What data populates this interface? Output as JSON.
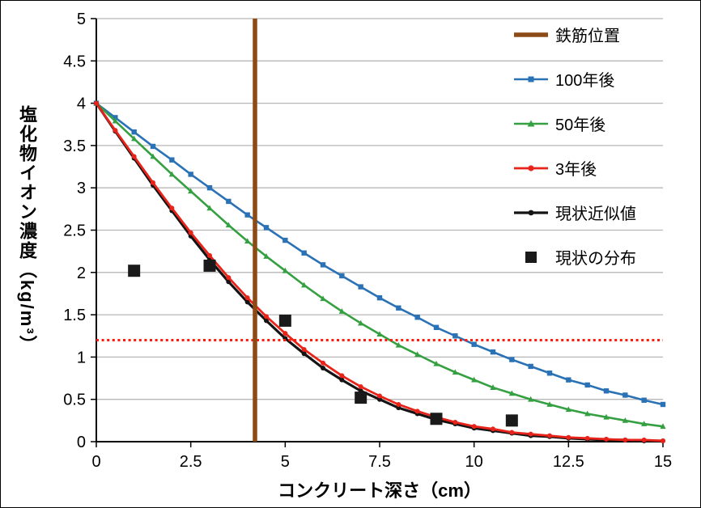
{
  "chart_data": {
    "type": "line",
    "title": "",
    "xlabel": "コンクリート深さ（cm）",
    "ylabel": "塩化物イオン濃度（kg/m³）",
    "xlim": [
      0,
      15
    ],
    "ylim": [
      0,
      5
    ],
    "x_ticks": [
      0,
      2.5,
      5,
      7.5,
      10,
      12.5,
      15
    ],
    "y_ticks": [
      0,
      0.5,
      1,
      1.5,
      2,
      2.5,
      3,
      3.5,
      4,
      4.5,
      5
    ],
    "grid": "horizontal",
    "gridline_color": "#b7b7b7",
    "legend_position": "top-right",
    "x": [
      0,
      0.5,
      1,
      1.5,
      2,
      2.5,
      3,
      3.5,
      4,
      4.5,
      5,
      5.5,
      6,
      6.5,
      7,
      7.5,
      8,
      8.5,
      9,
      9.5,
      10,
      10.5,
      11,
      11.5,
      12,
      12.5,
      13,
      13.5,
      14,
      14.5,
      15
    ],
    "series": [
      {
        "key": "100y",
        "name": "100年後",
        "color": "#2a72b5",
        "marker": "square",
        "line_width": 2.6,
        "values": [
          4.0,
          3.83,
          3.66,
          3.49,
          3.33,
          3.16,
          3.0,
          2.84,
          2.68,
          2.53,
          2.38,
          2.23,
          2.09,
          1.96,
          1.83,
          1.7,
          1.58,
          1.47,
          1.35,
          1.25,
          1.15,
          1.06,
          0.97,
          0.89,
          0.81,
          0.73,
          0.67,
          0.6,
          0.55,
          0.49,
          0.44
        ]
      },
      {
        "key": "50y",
        "name": "50年後",
        "color": "#35a041",
        "marker": "triangle",
        "line_width": 2.6,
        "values": [
          4.0,
          3.79,
          3.58,
          3.37,
          3.16,
          2.96,
          2.76,
          2.56,
          2.37,
          2.19,
          2.02,
          1.85,
          1.69,
          1.54,
          1.4,
          1.27,
          1.14,
          1.03,
          0.92,
          0.82,
          0.73,
          0.64,
          0.57,
          0.5,
          0.44,
          0.38,
          0.33,
          0.29,
          0.25,
          0.21,
          0.18
        ]
      },
      {
        "key": "current-fit",
        "name": "現状近似値",
        "color": "#141414",
        "marker": "circle",
        "line_width": 3.2,
        "values": [
          4.0,
          3.67,
          3.35,
          3.03,
          2.73,
          2.43,
          2.15,
          1.89,
          1.65,
          1.43,
          1.22,
          1.04,
          0.87,
          0.73,
          0.6,
          0.5,
          0.4,
          0.33,
          0.26,
          0.21,
          0.16,
          0.13,
          0.1,
          0.07,
          0.06,
          0.04,
          0.03,
          0.02,
          0.02,
          0.01,
          0.01
        ]
      },
      {
        "key": "3y",
        "name": "3年後",
        "color": "#e8231a",
        "marker": "circle",
        "line_width": 2.8,
        "values": [
          4.0,
          3.68,
          3.37,
          3.06,
          2.76,
          2.47,
          2.2,
          1.94,
          1.7,
          1.48,
          1.28,
          1.09,
          0.93,
          0.78,
          0.65,
          0.54,
          0.44,
          0.36,
          0.29,
          0.23,
          0.18,
          0.15,
          0.11,
          0.09,
          0.07,
          0.05,
          0.04,
          0.03,
          0.02,
          0.02,
          0.01
        ]
      }
    ],
    "scatter": {
      "key": "current-distribution",
      "name": "現状の分布",
      "color": "#1a1a1a",
      "marker": "big-square",
      "points": [
        [
          1,
          2.02
        ],
        [
          3,
          2.08
        ],
        [
          5,
          1.43
        ],
        [
          7,
          0.52
        ],
        [
          9,
          0.27
        ],
        [
          11,
          0.25
        ]
      ]
    },
    "rebar_line": {
      "name": "鉄筋位置",
      "color": "#8c4a17",
      "x": 4.2,
      "width": 5.5
    },
    "threshold_line": {
      "color": "#ff1a0d",
      "y": 1.2,
      "style": "dotted",
      "width": 3
    }
  },
  "legend": {
    "items": [
      {
        "label": "鉄筋位置"
      },
      {
        "label": "100年後"
      },
      {
        "label": "50年後"
      },
      {
        "label": "3年後"
      },
      {
        "label": "現状近似値"
      },
      {
        "label": "現状の分布"
      }
    ]
  }
}
